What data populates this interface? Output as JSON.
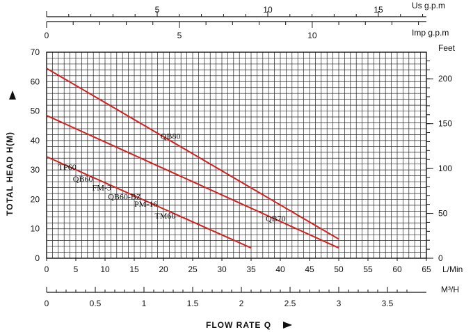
{
  "chart_data": {
    "type": "line",
    "xlabel": "FLOW RATE Q",
    "ylabel": "TOTAL HEAD H(M)",
    "xunit": "L/Min",
    "yunit_right": "Feet",
    "xlim": [
      0,
      65
    ],
    "ylim": [
      0,
      70
    ],
    "x_ticks": [
      "0",
      "5",
      "10",
      "15",
      "20",
      "25",
      "30",
      "35",
      "40",
      "45",
      "50",
      "55",
      "60",
      "65"
    ],
    "y_ticks": [
      "0",
      "10",
      "20",
      "30",
      "40",
      "50",
      "60",
      "70"
    ],
    "right_axis": {
      "unit": "Feet",
      "ticks": [
        "0",
        "50",
        "100",
        "150",
        "200"
      ]
    },
    "top_axes": [
      {
        "unit": "Us g.p.m",
        "ticks": [
          "5",
          "10",
          "15"
        ]
      },
      {
        "unit": "Imp g.p.m",
        "ticks": [
          "0",
          "5",
          "10"
        ]
      }
    ],
    "bottom_axis2": {
      "unit": "M³/H",
      "ticks": [
        "0",
        "0.5",
        "1",
        "1.5",
        "2",
        "2.5",
        "3",
        "3.5"
      ]
    },
    "grid": true,
    "line_color": "#d32020",
    "series": [
      {
        "name": "QB80",
        "x": [
          0,
          50
        ],
        "y": [
          64.5,
          6.5
        ]
      },
      {
        "name": "QB70",
        "x": [
          0,
          50
        ],
        "y": [
          48.5,
          3.5
        ]
      },
      {
        "name": "TP60",
        "x": [
          0,
          35
        ],
        "y": [
          34.5,
          3.5
        ]
      }
    ],
    "annotations": [
      "QB80",
      "QB70",
      "TP60",
      "QB60",
      "FM-3",
      "QB60-BZ",
      "PM-16",
      "TM60"
    ]
  }
}
